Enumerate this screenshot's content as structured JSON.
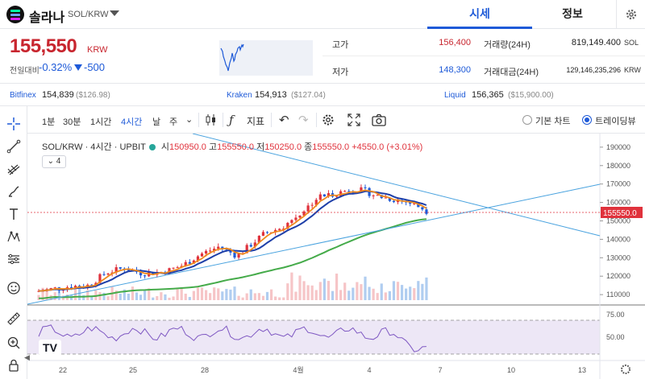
{
  "header": {
    "coin_name": "솔라나",
    "pair": "SOL/KRW",
    "tabs": [
      {
        "label": "시세",
        "active": true
      },
      {
        "label": "정보",
        "active": false
      }
    ]
  },
  "price": {
    "current": "155,550",
    "unit": "KRW",
    "change_label": "전일대비",
    "change_pct": "-0.32%",
    "change_amt": "-500",
    "high_label": "고가",
    "high": "156,400",
    "low_label": "저가",
    "low": "148,300",
    "volume_label": "거래량(24H)",
    "volume": "819,149.400",
    "volume_unit": "SOL",
    "value_label": "거래대금(24H)",
    "value": "129,146,235,296",
    "value_unit": "KRW"
  },
  "exchanges": [
    {
      "name": "Bitfinex",
      "price": "154,839",
      "usd": "($126.98)"
    },
    {
      "name": "Kraken",
      "price": "154,913",
      "usd": "($127.04)"
    },
    {
      "name": "Liquid",
      "price": "156,365",
      "usd": "($15,900.00)"
    }
  ],
  "toolbar": {
    "timeframes": [
      {
        "label": "1분",
        "active": false
      },
      {
        "label": "30분",
        "active": false
      },
      {
        "label": "1시간",
        "active": false
      },
      {
        "label": "4시간",
        "active": true
      },
      {
        "label": "날",
        "active": false
      },
      {
        "label": "주",
        "active": false
      }
    ],
    "indicators_label": "지표",
    "chart_modes": [
      {
        "label": "기본 차트",
        "selected": false
      },
      {
        "label": "트레이딩뷰",
        "selected": true
      }
    ]
  },
  "legend": {
    "symbol": "SOL/KRW · 4시간 · UPBIT",
    "open_label": "시",
    "open": "150950.0",
    "high_label": "고",
    "high": "155550.0",
    "low_label": "저",
    "low": "150250.0",
    "close_label": "종",
    "close": "155550.0",
    "change": "+4550.0 (+3.01%)",
    "indicator_count": "4"
  },
  "colors": {
    "up": "#e0323c",
    "down": "#1e5ad8",
    "accent": "#1e5ad8",
    "ma_fast": "#ef8a1e",
    "ma_mid": "#1e3fa8",
    "ma_slow": "#45ab4a",
    "trendline": "#4aa3df",
    "rsi": "#7e57c2"
  },
  "chart_data": {
    "type": "candlestick",
    "y_ticks": [
      190000,
      180000,
      170000,
      160000,
      150000,
      140000,
      130000,
      120000,
      110000
    ],
    "ylim": [
      107000,
      193000
    ],
    "current_price_label": "155550.0",
    "x_labels": [
      "22",
      "25",
      "28",
      "4월",
      "4",
      "7",
      "10",
      "13"
    ],
    "rsi_ticks": [
      "75.00",
      "50.00"
    ],
    "rsi_levels": [
      70,
      30
    ]
  }
}
